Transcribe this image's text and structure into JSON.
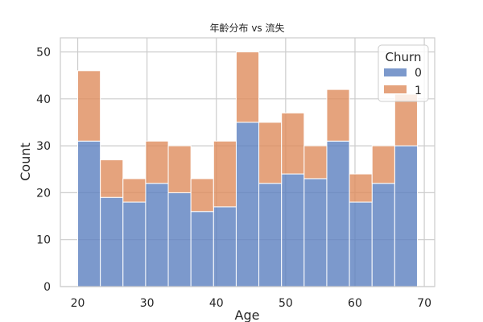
{
  "chart_data": {
    "type": "bar",
    "title": "年齡分布 vs 流失",
    "xlabel": "Age",
    "ylabel": "Count",
    "xlim": [
      17.5,
      71.5
    ],
    "ylim": [
      0,
      53
    ],
    "x_ticks": [
      20,
      30,
      40,
      50,
      60,
      70
    ],
    "y_ticks": [
      0,
      10,
      20,
      30,
      40,
      50
    ],
    "grid": true,
    "stacked": true,
    "bin_edges": [
      20,
      23.267,
      26.533,
      29.8,
      33.067,
      36.333,
      39.6,
      42.867,
      46.133,
      49.4,
      52.667,
      55.933,
      59.2,
      62.467,
      65.733,
      69
    ],
    "legend": {
      "title": "Churn",
      "placement": "top-right",
      "entries": [
        "0",
        "1"
      ]
    },
    "series": [
      {
        "name": "0",
        "color": "#5b7fbf",
        "values": [
          31,
          19,
          18,
          22,
          20,
          16,
          17,
          35,
          22,
          24,
          23,
          31,
          18,
          22,
          30
        ]
      },
      {
        "name": "1",
        "color": "#de8c5d",
        "values": [
          15,
          8,
          5,
          9,
          10,
          7,
          14,
          15,
          13,
          13,
          7,
          11,
          6,
          8,
          11
        ]
      }
    ]
  }
}
